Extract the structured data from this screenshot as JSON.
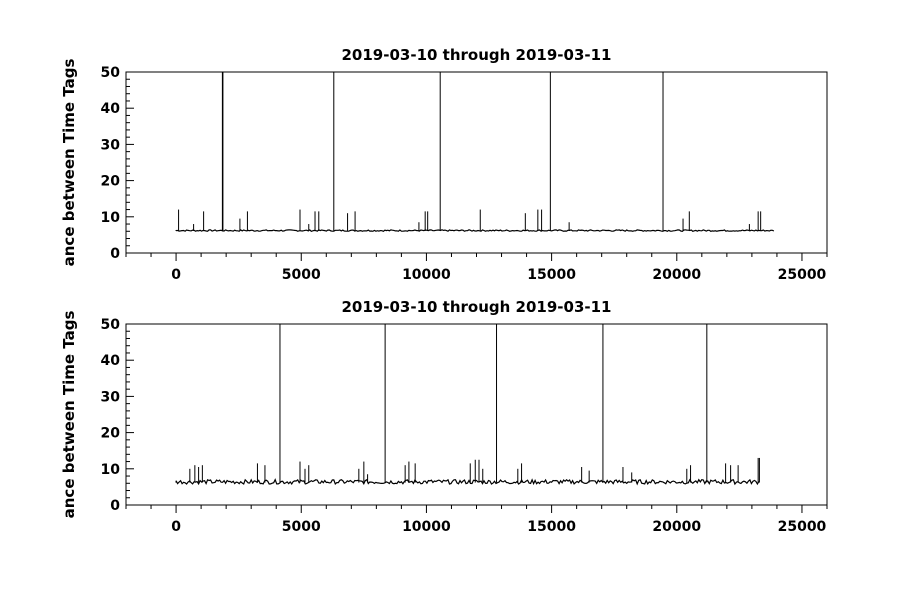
{
  "chart_data": [
    {
      "type": "line",
      "title": "2019-03-10 through 2019-03-11",
      "ylabel": "ance between Time Tags",
      "xlabel": "",
      "xlim": [
        -2000,
        26000
      ],
      "ylim": [
        0,
        50
      ],
      "xticks": [
        0,
        5000,
        10000,
        15000,
        20000,
        25000
      ],
      "yticks": [
        0,
        10,
        20,
        30,
        40,
        50
      ],
      "grid": false,
      "baseline": 6.1,
      "baseline_range": [
        0,
        23900
      ],
      "spikes": [
        {
          "x": 100,
          "y": 12
        },
        {
          "x": 700,
          "y": 8
        },
        {
          "x": 1100,
          "y": 11.5
        },
        {
          "x": 1850,
          "y": 50
        },
        {
          "x": 1860,
          "y": 50
        },
        {
          "x": 1870,
          "y": 50
        },
        {
          "x": 2550,
          "y": 9.5
        },
        {
          "x": 2850,
          "y": 11.5
        },
        {
          "x": 4950,
          "y": 12
        },
        {
          "x": 5300,
          "y": 8
        },
        {
          "x": 5550,
          "y": 11.5
        },
        {
          "x": 5700,
          "y": 11.5
        },
        {
          "x": 6300,
          "y": 50
        },
        {
          "x": 6850,
          "y": 11
        },
        {
          "x": 7150,
          "y": 11.5
        },
        {
          "x": 9700,
          "y": 8.5
        },
        {
          "x": 9950,
          "y": 11.5
        },
        {
          "x": 10050,
          "y": 11.5
        },
        {
          "x": 10550,
          "y": 50
        },
        {
          "x": 12150,
          "y": 12
        },
        {
          "x": 13950,
          "y": 11
        },
        {
          "x": 14450,
          "y": 12
        },
        {
          "x": 14600,
          "y": 12
        },
        {
          "x": 14950,
          "y": 50
        },
        {
          "x": 15700,
          "y": 8.5
        },
        {
          "x": 19450,
          "y": 50
        },
        {
          "x": 20250,
          "y": 9.5
        },
        {
          "x": 20500,
          "y": 11.5
        },
        {
          "x": 22900,
          "y": 8
        },
        {
          "x": 23250,
          "y": 11.5
        },
        {
          "x": 23350,
          "y": 11.5
        }
      ]
    },
    {
      "type": "line",
      "title": "2019-03-10 through 2019-03-11",
      "ylabel": "ance between Time Tags",
      "xlabel": "",
      "xlim": [
        -2000,
        26000
      ],
      "ylim": [
        0,
        50
      ],
      "xticks": [
        0,
        5000,
        10000,
        15000,
        20000,
        25000
      ],
      "yticks": [
        0,
        10,
        20,
        30,
        40,
        50
      ],
      "grid": false,
      "baseline": 6.2,
      "baseline_range": [
        0,
        23300
      ],
      "spikes": [
        {
          "x": 550,
          "y": 10
        },
        {
          "x": 750,
          "y": 11
        },
        {
          "x": 900,
          "y": 10.5
        },
        {
          "x": 1050,
          "y": 11
        },
        {
          "x": 3250,
          "y": 11.5
        },
        {
          "x": 3550,
          "y": 11
        },
        {
          "x": 4150,
          "y": 50
        },
        {
          "x": 4950,
          "y": 12
        },
        {
          "x": 5150,
          "y": 10
        },
        {
          "x": 5300,
          "y": 11
        },
        {
          "x": 7300,
          "y": 10
        },
        {
          "x": 7500,
          "y": 12
        },
        {
          "x": 7650,
          "y": 8.5
        },
        {
          "x": 8350,
          "y": 50
        },
        {
          "x": 9150,
          "y": 11
        },
        {
          "x": 9300,
          "y": 12
        },
        {
          "x": 9550,
          "y": 11.5
        },
        {
          "x": 11750,
          "y": 11.5
        },
        {
          "x": 11950,
          "y": 12.5
        },
        {
          "x": 12100,
          "y": 12.5
        },
        {
          "x": 12250,
          "y": 10
        },
        {
          "x": 12800,
          "y": 50
        },
        {
          "x": 13650,
          "y": 10
        },
        {
          "x": 13800,
          "y": 11.5
        },
        {
          "x": 16200,
          "y": 10.5
        },
        {
          "x": 16500,
          "y": 9.5
        },
        {
          "x": 17050,
          "y": 50
        },
        {
          "x": 17850,
          "y": 10.5
        },
        {
          "x": 18200,
          "y": 9
        },
        {
          "x": 20400,
          "y": 10
        },
        {
          "x": 20550,
          "y": 11
        },
        {
          "x": 21200,
          "y": 50
        },
        {
          "x": 21950,
          "y": 11.5
        },
        {
          "x": 22150,
          "y": 11
        },
        {
          "x": 22450,
          "y": 11
        },
        {
          "x": 23250,
          "y": 13
        },
        {
          "x": 23300,
          "y": 13
        }
      ]
    }
  ]
}
